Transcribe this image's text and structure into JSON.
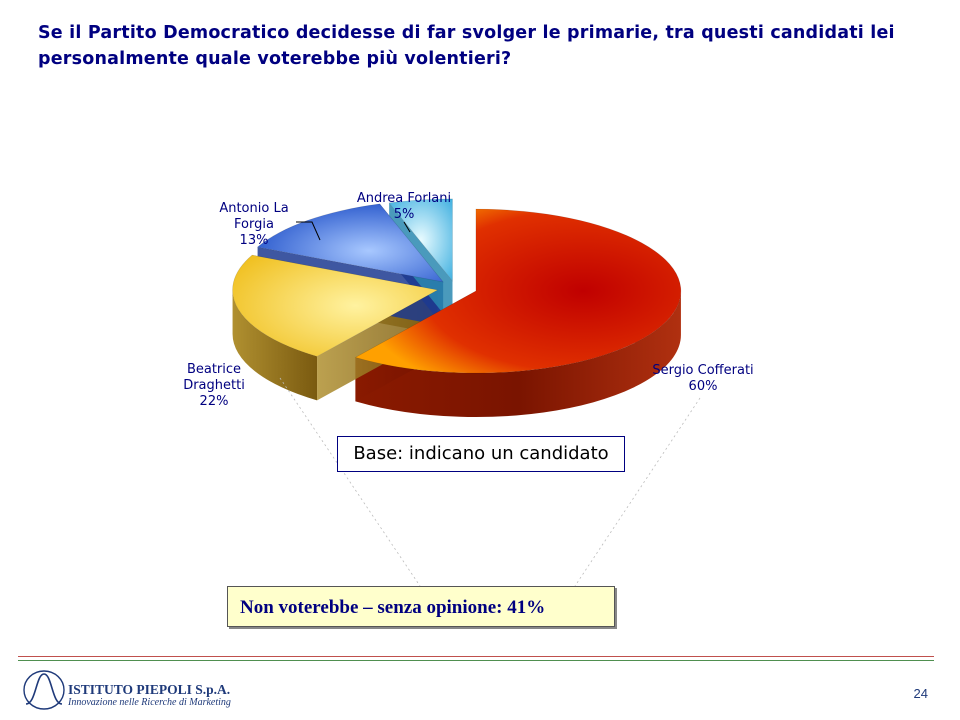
{
  "title": "Se il Partito Democratico decidesse di far svolger le primarie, tra questi candidati lei personalmente quale voterebbe più volentieri?",
  "chart_data": {
    "type": "pie",
    "categories": [
      "Sergio Cofferati",
      "Beatrice Draghetti",
      "Antonio La Forgia",
      "Andrea Forlani"
    ],
    "values": [
      60,
      22,
      13,
      5
    ],
    "value_labels": [
      "60%",
      "22%",
      "13%",
      "5%"
    ],
    "colors": [
      "#c82000",
      "#e8c030",
      "#3a6ad8",
      "#60c8e8"
    ],
    "style": "3D exploded pie"
  },
  "labels": [
    {
      "line1": "Sergio Cofferati",
      "line2": "60%"
    },
    {
      "line1": "Beatrice",
      "line2": "Draghetti",
      "line3": "22%"
    },
    {
      "line1": "Antonio La",
      "line2": "Forgia",
      "line3": "13%"
    },
    {
      "line1": "Andrea Forlani",
      "line2": "5%"
    }
  ],
  "base_note": "Base: indicano un candidato",
  "callout": "Non voterebbe – senza opinione: 41%",
  "footer": {
    "company": "ISTITUTO PIEPOLI S.p.A.",
    "tagline": "Innovazione nelle Ricerche di Marketing",
    "page_number": "24"
  }
}
